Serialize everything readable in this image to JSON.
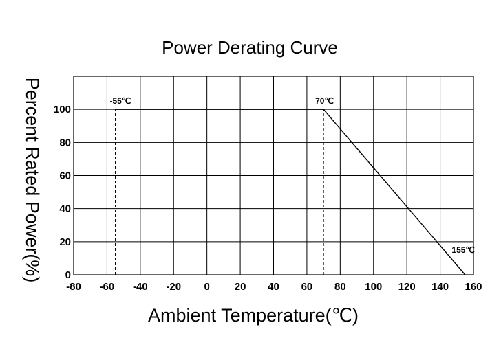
{
  "chart_data": {
    "type": "line",
    "title": "Power Derating Curve",
    "xlabel": "Ambient Temperature(℃)",
    "ylabel": "Percent Rated Power(%)",
    "xlim": [
      -80,
      160
    ],
    "ylim": [
      0,
      120
    ],
    "xticks": [
      -80,
      -60,
      -40,
      -20,
      0,
      20,
      40,
      60,
      80,
      100,
      120,
      140,
      160
    ],
    "yticks": [
      0,
      20,
      40,
      60,
      80,
      100
    ],
    "grid": true,
    "series": [
      {
        "x": [
          -55,
          70,
          155
        ],
        "y": [
          100,
          100,
          0
        ]
      }
    ],
    "reference_lines": [
      {
        "x": -55,
        "y_from": 0,
        "y_to": 100,
        "style": "dashed"
      },
      {
        "x": 70,
        "y_from": 0,
        "y_to": 100,
        "style": "dashed"
      }
    ],
    "annotations": [
      {
        "text": "-55℃",
        "x": -55,
        "y": 100
      },
      {
        "text": "70℃",
        "x": 70,
        "y": 100
      },
      {
        "text": "155℃",
        "x": 155,
        "y": 0
      }
    ]
  }
}
